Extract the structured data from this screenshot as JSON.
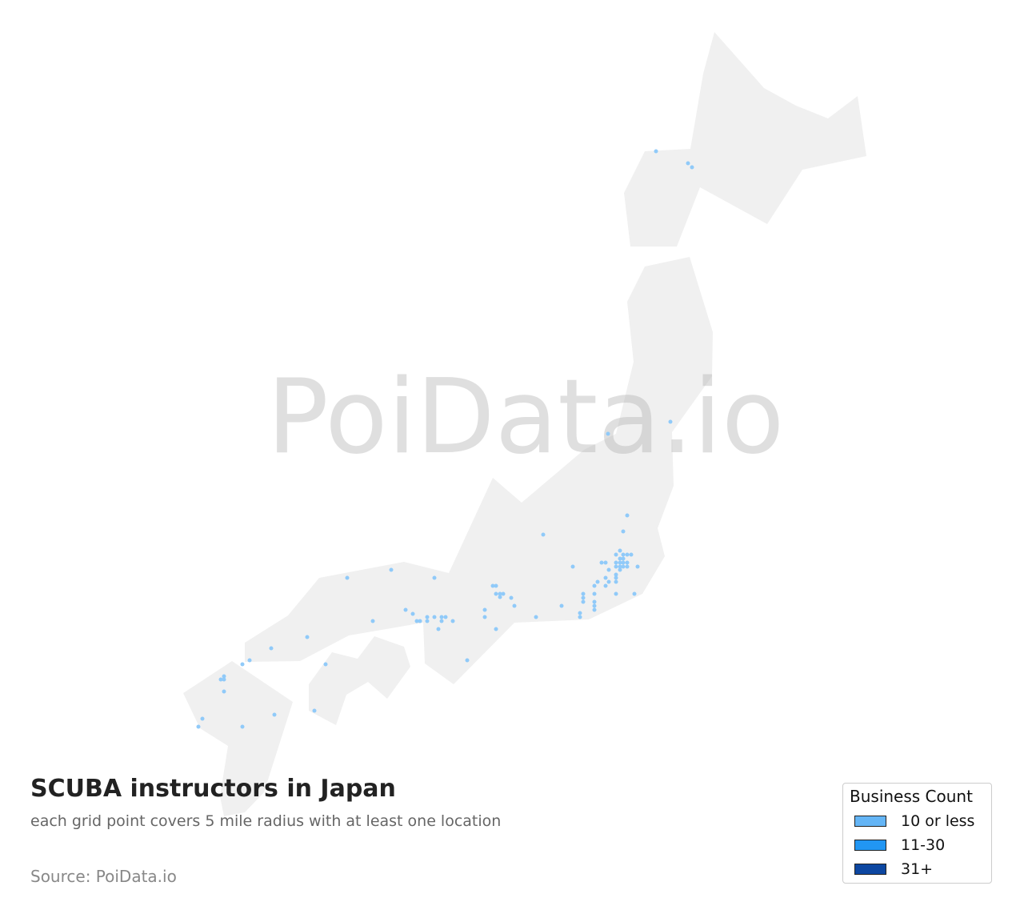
{
  "title": "SCUBA instructors in Japan",
  "subtitle": "each grid point covers 5 mile radius with at least one location",
  "source": "Source: PoiData.io",
  "watermark": "PoiData.io",
  "colors": {
    "land": "#f0f0f0",
    "point": "#90caf9"
  },
  "legend": {
    "title": "Business Count",
    "items": [
      {
        "label": "10 or less",
        "color": "#64b5f6"
      },
      {
        "label": "11-30",
        "color": "#2196f3"
      },
      {
        "label": "31+",
        "color": "#0d47a1"
      }
    ]
  }
}
